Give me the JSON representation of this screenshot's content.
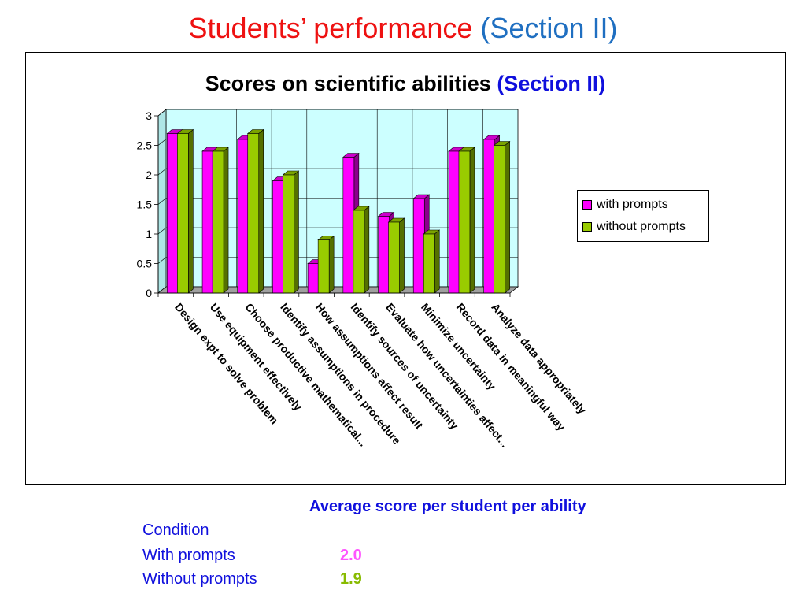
{
  "slide": {
    "title_main": "Students’ performance",
    "title_section": "(Section II)"
  },
  "chart_data": {
    "type": "bar",
    "title": "Scores on scientific abilities",
    "title_section": "(Section II)",
    "categories": [
      "Design expt to solve problem",
      "Use equipment effectively",
      "Choose productive mathematical...",
      "Identify assumptions in procedure",
      "How assumptions affect result",
      "Identify sources of uncertainty",
      "Evaluate how uncertainties affect...",
      "Minimize uncertainty",
      "Record data in meaningful way",
      "Analyze data appropriately"
    ],
    "series": [
      {
        "name": "with prompts",
        "color": "#ff00ff",
        "values": [
          2.7,
          2.4,
          2.6,
          1.9,
          0.5,
          2.3,
          1.3,
          1.6,
          2.4,
          2.6
        ]
      },
      {
        "name": "without prompts",
        "color": "#99cc00",
        "values": [
          2.7,
          2.4,
          2.7,
          2.0,
          0.9,
          1.4,
          1.2,
          1.0,
          2.4,
          2.5
        ]
      }
    ],
    "yticks": [
      "0",
      "0.5",
      "1",
      "1.5",
      "2",
      "2.5",
      "3"
    ],
    "ylim": [
      0,
      3
    ],
    "grid": true,
    "legend_position": "right",
    "plot_background": "#ccffff"
  },
  "summary": {
    "heading": "Average score per student per ability",
    "condition_label": "Condition",
    "rows": [
      {
        "label": "With prompts",
        "value": "2.0",
        "color": "#ff55ff"
      },
      {
        "label": "Without prompts",
        "value": "1.9",
        "color": "#88bb00"
      }
    ]
  }
}
